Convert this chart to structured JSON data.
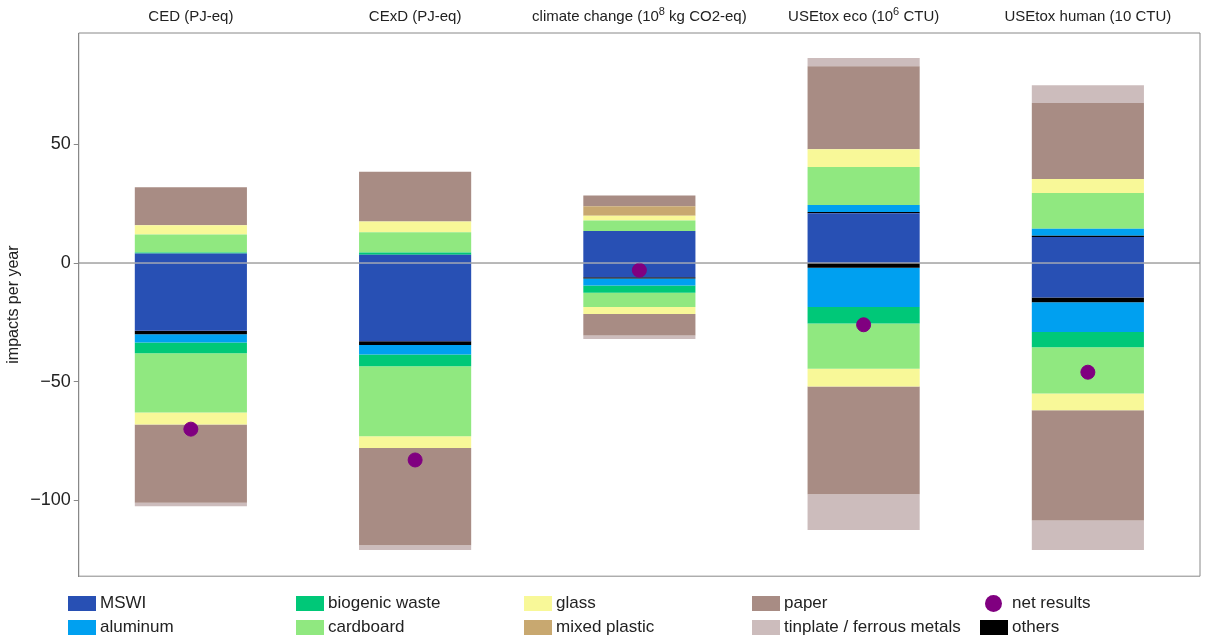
{
  "chart_data": {
    "type": "bar",
    "stacked": true,
    "ylabel": "impacts per year",
    "categories": [
      "CED (PJ-eq)",
      "CExD (PJ-eq)",
      "climate change (10$^{8}$ kg CO2-eq)",
      "USEtox eco (10$^{6}$ CTU)",
      "USEtox human (10 CTU)"
    ],
    "ylim": [
      -132,
      97
    ],
    "yticks": [
      -100,
      -50,
      0,
      50
    ],
    "grid": false,
    "legend": "bottom",
    "marker": "circle",
    "ref_lines": [
      {
        "axis": "y",
        "value": 0,
        "color": "#aaaaaa"
      }
    ],
    "series": [
      {
        "name": "MSWI",
        "color": "#2850b4",
        "values": [
          4,
          3.5,
          13.5,
          21,
          11
        ]
      },
      {
        "color": "#000000",
        "values": [
          null,
          null,
          null,
          0.5,
          0.5
        ]
      },
      {
        "name": "aluminum",
        "color": "#00a0f0",
        "values": [
          null,
          null,
          null,
          3,
          3
        ]
      },
      {
        "name": "biogenic waste",
        "color": "#00c878",
        "values": [
          0.5,
          1,
          null,
          null,
          null
        ]
      },
      {
        "name": "cardboard",
        "color": "#90e880",
        "values": [
          7.5,
          8.5,
          4.5,
          16,
          15
        ]
      },
      {
        "name": "glass",
        "color": "#f8f898",
        "values": [
          4,
          4.5,
          2,
          7.5,
          6
        ]
      },
      {
        "name": "mixed plastic",
        "color": "#c8a870",
        "values": [
          null,
          null,
          4,
          null,
          null
        ]
      },
      {
        "name": "paper",
        "color": "#a88c84",
        "values": [
          16,
          21,
          4.5,
          35,
          32
        ]
      },
      {
        "name": "tinplate / ferrous metals",
        "color": "#ccbcbc",
        "values": [
          null,
          null,
          null,
          3.5,
          7.5
        ]
      },
      {
        "name": "net results",
        "type": "scatter",
        "color": "#800080",
        "values": [
          -70,
          -83,
          -3,
          -26,
          -46
        ]
      },
      {
        "color": "#2850b4",
        "values": [
          -28.5,
          -33,
          -6,
          null,
          -14.5
        ]
      },
      {
        "name": "others",
        "color": "#000000",
        "values": [
          -1.5,
          -1.5,
          -0.5,
          -2,
          -2
        ]
      },
      {
        "color": "#00a0f0",
        "values": [
          -3.5,
          -4,
          -3,
          -16.5,
          -12.5
        ]
      },
      {
        "color": "#00c878",
        "values": [
          -4.5,
          -5,
          -3,
          -7,
          -6.5
        ]
      },
      {
        "color": "#90e880",
        "values": [
          -25,
          -29.5,
          -6,
          -19,
          -19.5
        ]
      },
      {
        "color": "#f8f898",
        "values": [
          -5,
          -5,
          -3,
          -7.5,
          -7
        ]
      },
      {
        "color": "#a88c84",
        "values": [
          -33,
          -41,
          -9,
          -45.5,
          -46.5
        ]
      },
      {
        "color": "#ccbcbc",
        "values": [
          -1.5,
          -2,
          -1.5,
          -15,
          -12.5
        ]
      }
    ]
  }
}
